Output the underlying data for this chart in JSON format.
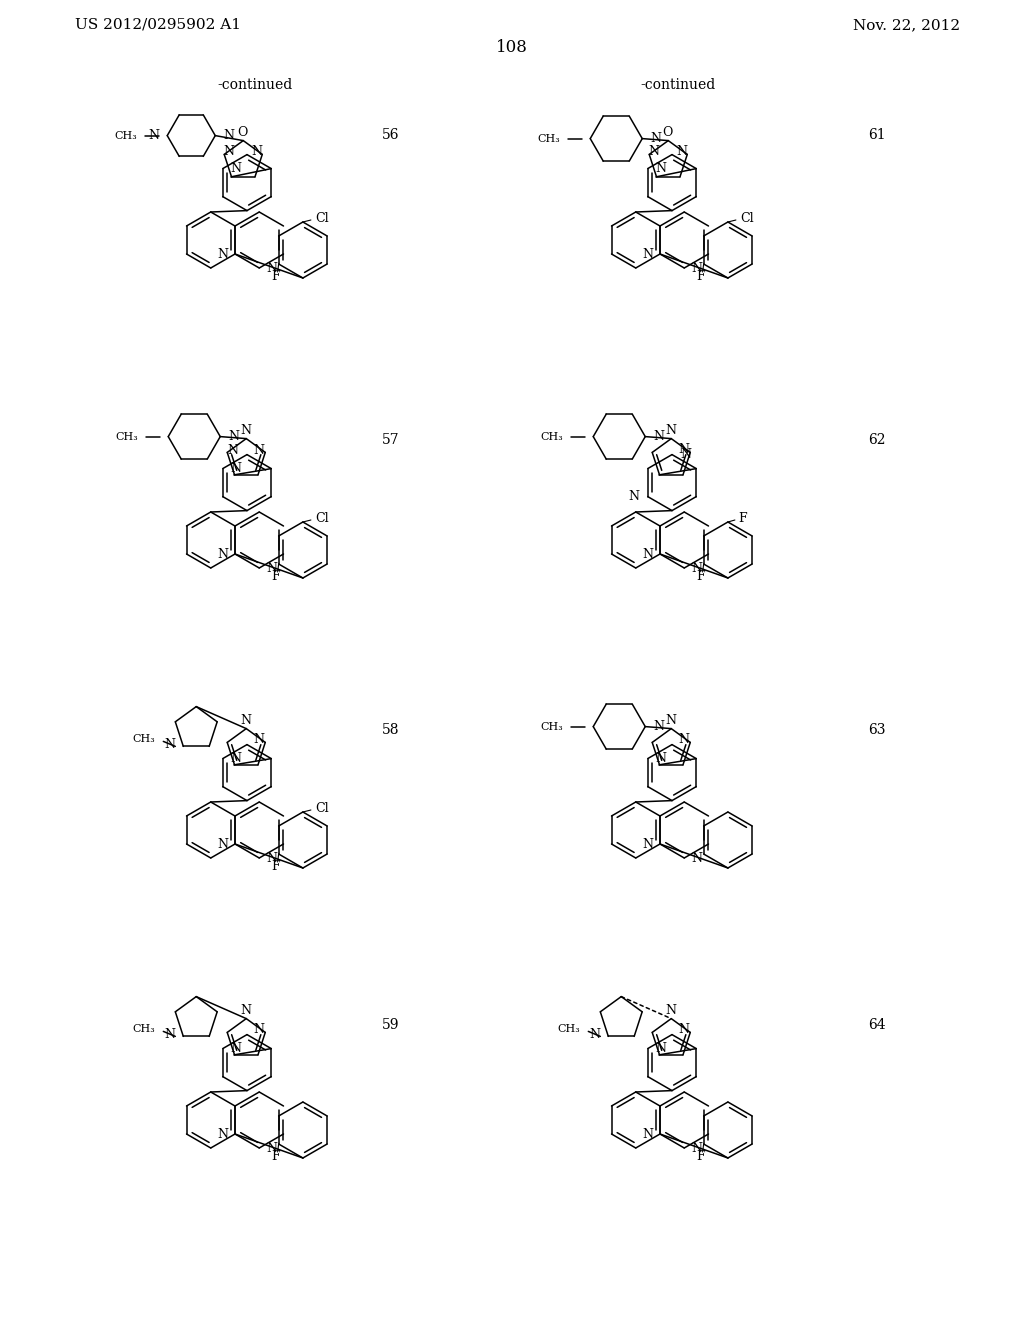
{
  "bg": "#ffffff",
  "header_left": "US 2012/0295902 A1",
  "header_right": "Nov. 22, 2012",
  "page_num": "108",
  "continued": "-continued",
  "compounds_left": [
    "56",
    "57",
    "58",
    "59"
  ],
  "compounds_right": [
    "61",
    "62",
    "63",
    "64"
  ],
  "line_color": "#000000",
  "text_color": "#000000"
}
